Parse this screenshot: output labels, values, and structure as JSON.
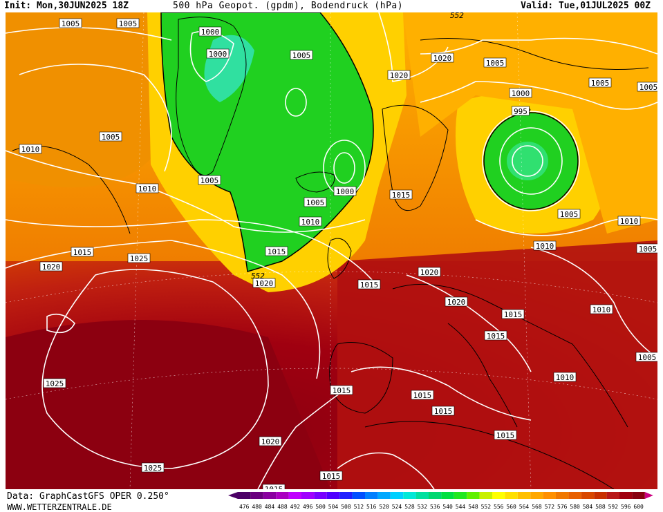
{
  "header": {
    "init": "Init: Mon,30JUN2025 18Z",
    "title": "500 hPa Geopot. (gpdm), Bodendruck (hPa)",
    "valid": "Valid: Tue,01JUL2025 00Z"
  },
  "footer": {
    "data_source": "Data: GraphCastGFS OPER 0.250°",
    "website": "WWW.WETTERZENTRALE.DE"
  },
  "legend": {
    "levels": [
      "476",
      "480",
      "484",
      "488",
      "492",
      "496",
      "500",
      "504",
      "508",
      "512",
      "516",
      "520",
      "524",
      "528",
      "532",
      "536",
      "540",
      "544",
      "548",
      "552",
      "556",
      "560",
      "564",
      "568",
      "572",
      "576",
      "580",
      "584",
      "588",
      "592",
      "596",
      "600"
    ],
    "colors": [
      "#4b0066",
      "#6a007f",
      "#8a00a0",
      "#aa00c0",
      "#c000ff",
      "#a000ff",
      "#7800ff",
      "#5000ff",
      "#2020ff",
      "#0050ff",
      "#0080ff",
      "#00a8ff",
      "#00d0ff",
      "#00e8d8",
      "#00e0a0",
      "#00d870",
      "#00e040",
      "#20e820",
      "#60f000",
      "#c8f000",
      "#ffff00",
      "#ffe000",
      "#ffc000",
      "#ffa800",
      "#ff9000",
      "#f07800",
      "#e86000",
      "#d84800",
      "#c83000",
      "#b81818",
      "#a00010",
      "#880010"
    ]
  },
  "pressure_labels": [
    {
      "text": "1005"
    },
    {
      "text": "1005"
    },
    {
      "text": "1000"
    },
    {
      "text": "1000"
    },
    {
      "text": "1005"
    },
    {
      "text": "1020"
    },
    {
      "text": "1020"
    },
    {
      "text": "1005"
    },
    {
      "text": "1005"
    },
    {
      "text": "1005"
    },
    {
      "text": "1000"
    },
    {
      "text": "995"
    },
    {
      "text": "1005"
    },
    {
      "text": "1010"
    },
    {
      "text": "1005"
    },
    {
      "text": "1000"
    },
    {
      "text": "1005"
    },
    {
      "text": "1010"
    },
    {
      "text": "1010"
    },
    {
      "text": "1015"
    },
    {
      "text": "1015"
    },
    {
      "text": "1020"
    },
    {
      "text": "1025"
    },
    {
      "text": "1015"
    },
    {
      "text": "1020"
    },
    {
      "text": "1020"
    },
    {
      "text": "1005"
    },
    {
      "text": "1010"
    },
    {
      "text": "1010"
    },
    {
      "text": "1005"
    },
    {
      "text": "1010"
    },
    {
      "text": "1015"
    },
    {
      "text": "1020"
    },
    {
      "text": "1015"
    },
    {
      "text": "1015"
    },
    {
      "text": "1025"
    },
    {
      "text": "1015"
    },
    {
      "text": "1015"
    },
    {
      "text": "1015"
    },
    {
      "text": "1010"
    },
    {
      "text": "1015"
    },
    {
      "text": "1020"
    },
    {
      "text": "1025"
    },
    {
      "text": "1015"
    },
    {
      "text": "1005"
    },
    {
      "text": "1015"
    }
  ],
  "contour_552_labels": [
    "552",
    "552",
    "552"
  ]
}
